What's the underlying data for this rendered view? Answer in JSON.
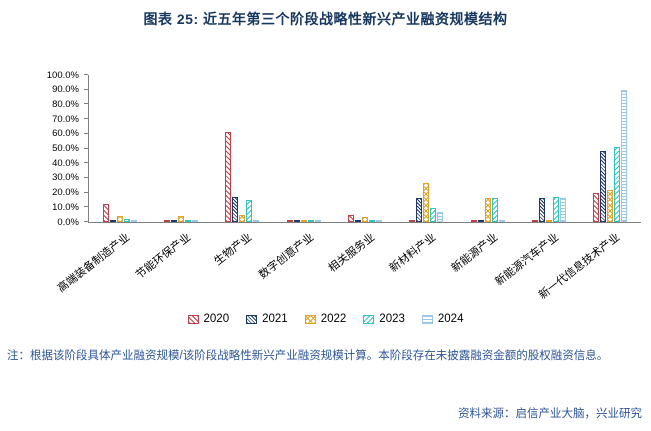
{
  "title": "图表 25: 近五年第三个阶段战略性新兴产业融资规模结构",
  "note": "注：根据该阶段具体产业融资规模/该阶段战略性新兴产业融资规模计算。本阶段存在未披露融资金额的股权融资信息。",
  "source": "资料来源：启信产业大脑，兴业研究",
  "colors": {
    "title": "#17375E",
    "note_text": "#2E5597",
    "axis": "#808080",
    "s2020": "#C0404A",
    "s2021": "#1F3864",
    "s2022": "#DFA32A",
    "s2023": "#2FC5BE",
    "s2024": "#9CC7E6"
  },
  "chart_data": {
    "type": "bar",
    "title": "图表 25: 近五年第三个阶段战略性新兴产业融资规模结构",
    "xlabel": "",
    "ylabel": "",
    "ylim": [
      0,
      100
    ],
    "ytick_step": 10,
    "ytick_labels": [
      "0.0%",
      "10.0%",
      "20.0%",
      "30.0%",
      "40.0%",
      "50.0%",
      "60.0%",
      "70.0%",
      "80.0%",
      "90.0%",
      "100.0%"
    ],
    "grid": false,
    "legend_position": "bottom",
    "categories": [
      "高端装备制造产业",
      "节能环保产业",
      "生物产业",
      "数字创意产业",
      "相关服务业",
      "新材料产业",
      "新能源产业",
      "新能源汽车产业",
      "新一代信息技术产业"
    ],
    "series": [
      {
        "name": "2020",
        "color": "#C0404A",
        "pattern": "diag",
        "values": [
          12.0,
          1.0,
          61.5,
          0.5,
          5.0,
          1.0,
          0.5,
          0.5,
          19.5
        ]
      },
      {
        "name": "2021",
        "color": "#1F3864",
        "pattern": "diag-dense",
        "values": [
          1.5,
          1.0,
          17.0,
          0.5,
          1.0,
          16.0,
          1.5,
          16.0,
          48.0
        ]
      },
      {
        "name": "2022",
        "color": "#DFA32A",
        "pattern": "cross",
        "values": [
          4.0,
          4.0,
          5.0,
          1.0,
          3.5,
          26.5,
          16.5,
          1.5,
          22.0
        ]
      },
      {
        "name": "2023",
        "color": "#2FC5BE",
        "pattern": "diag-down",
        "values": [
          2.0,
          1.5,
          15.0,
          0.5,
          1.5,
          9.5,
          16.0,
          17.0,
          51.0
        ]
      },
      {
        "name": "2024",
        "color": "#9CC7E6",
        "pattern": "horiz",
        "values": [
          1.0,
          0.5,
          1.0,
          0.3,
          0.5,
          7.0,
          1.0,
          16.0,
          90.0
        ]
      }
    ]
  }
}
